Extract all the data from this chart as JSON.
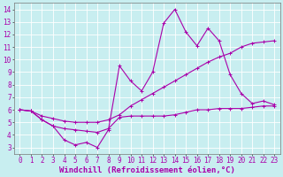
{
  "xlabel": "Windchill (Refroidissement éolien,°C)",
  "xlim": [
    -0.5,
    23.5
  ],
  "ylim": [
    2.5,
    14.5
  ],
  "bg_color": "#c8eef0",
  "line_color": "#aa00aa",
  "grid_color": "#ffffff",
  "xticks": [
    0,
    1,
    2,
    3,
    4,
    5,
    6,
    7,
    8,
    9,
    10,
    11,
    12,
    13,
    14,
    15,
    16,
    17,
    18,
    19,
    20,
    21,
    22,
    23
  ],
  "yticks": [
    3,
    4,
    5,
    6,
    7,
    8,
    9,
    10,
    11,
    12,
    13,
    14
  ],
  "line1_x": [
    0,
    1,
    2,
    3,
    4,
    5,
    6,
    7,
    8,
    9,
    10,
    11,
    12,
    13,
    14,
    15,
    16,
    17,
    18,
    19,
    20,
    21,
    22,
    23
  ],
  "line1_y": [
    6.0,
    5.9,
    5.2,
    4.7,
    3.6,
    3.2,
    3.4,
    3.0,
    4.4,
    9.5,
    8.3,
    7.5,
    9.0,
    12.9,
    14.0,
    12.2,
    11.1,
    12.5,
    11.5,
    8.8,
    7.3,
    6.5,
    6.7,
    6.4
  ],
  "line2_x": [
    0,
    1,
    2,
    3,
    4,
    5,
    6,
    7,
    8,
    9,
    10,
    11,
    12,
    13,
    14,
    15,
    16,
    17,
    18,
    19,
    20,
    21,
    22,
    23
  ],
  "line2_y": [
    6.0,
    5.9,
    5.5,
    5.3,
    5.1,
    5.0,
    5.0,
    5.0,
    5.2,
    5.6,
    6.3,
    6.8,
    7.3,
    7.8,
    8.3,
    8.8,
    9.3,
    9.8,
    10.2,
    10.5,
    11.0,
    11.3,
    11.4,
    11.5
  ],
  "line3_x": [
    0,
    1,
    2,
    3,
    4,
    5,
    6,
    7,
    8,
    9,
    10,
    11,
    12,
    13,
    14,
    15,
    16,
    17,
    18,
    19,
    20,
    21,
    22,
    23
  ],
  "line3_y": [
    6.0,
    5.9,
    5.2,
    4.7,
    4.5,
    4.4,
    4.3,
    4.2,
    4.5,
    5.4,
    5.5,
    5.5,
    5.5,
    5.5,
    5.6,
    5.8,
    6.0,
    6.0,
    6.1,
    6.1,
    6.1,
    6.2,
    6.3,
    6.3
  ],
  "tick_fontsize": 5.5,
  "xlabel_fontsize": 6.5,
  "linewidth": 0.8,
  "markersize": 2.5
}
